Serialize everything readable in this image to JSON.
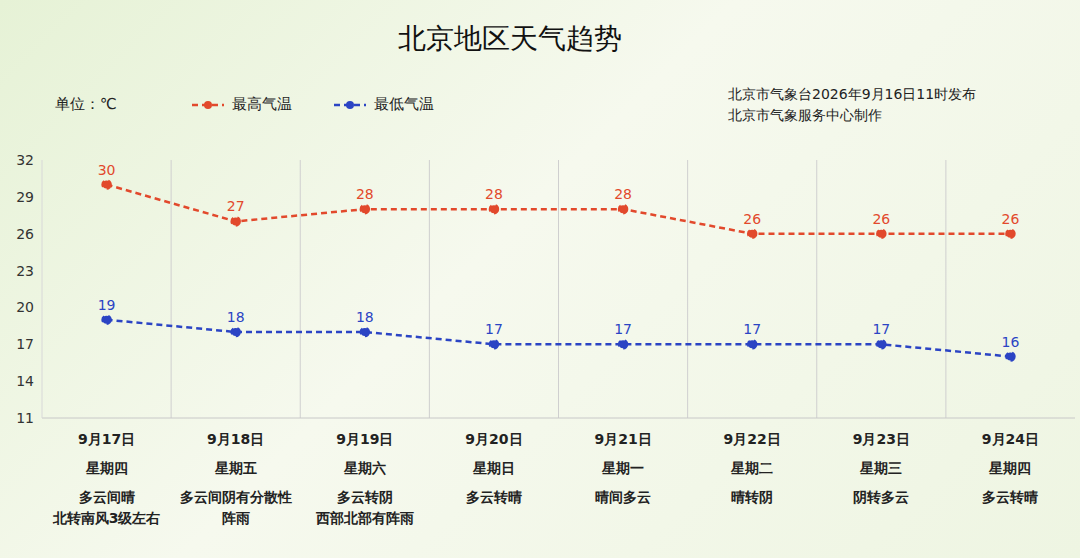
{
  "chart_data": {
    "type": "line",
    "title": "北京地区天气趋势",
    "unit_label": "单位：℃",
    "notes": [
      "北京市气象台2026年9月16日11时发布",
      "北京市气象服务中心制作"
    ],
    "categories": [
      "9月17日",
      "9月18日",
      "9月19日",
      "9月20日",
      "9月21日",
      "9月22日",
      "9月23日",
      "9月24日"
    ],
    "weekdays": [
      "星期四",
      "星期五",
      "星期六",
      "星期日",
      "星期一",
      "星期二",
      "星期三",
      "星期四"
    ],
    "weather": [
      [
        "多云间晴",
        "北转南风3级左右"
      ],
      [
        "多云间阴有分散性",
        "阵雨"
      ],
      [
        "多云转阴",
        "西部北部有阵雨"
      ],
      [
        "多云转晴"
      ],
      [
        "晴间多云"
      ],
      [
        "晴转阴"
      ],
      [
        "阴转多云"
      ],
      [
        "多云转晴"
      ]
    ],
    "series": [
      {
        "name": "最高气温",
        "color": "#e2492c",
        "values": [
          30,
          27,
          28,
          28,
          28,
          26,
          26,
          26
        ],
        "marker": "circle",
        "line_style": "dashed"
      },
      {
        "name": "最低气温",
        "color": "#2b44c4",
        "values": [
          19,
          18,
          18,
          17,
          17,
          17,
          17,
          16
        ],
        "marker": "circle",
        "line_style": "dashed"
      }
    ],
    "ylim": [
      11,
      32
    ],
    "yticks": [
      11,
      14,
      17,
      20,
      23,
      26,
      29,
      32
    ],
    "grid": true,
    "data_labels": true
  }
}
